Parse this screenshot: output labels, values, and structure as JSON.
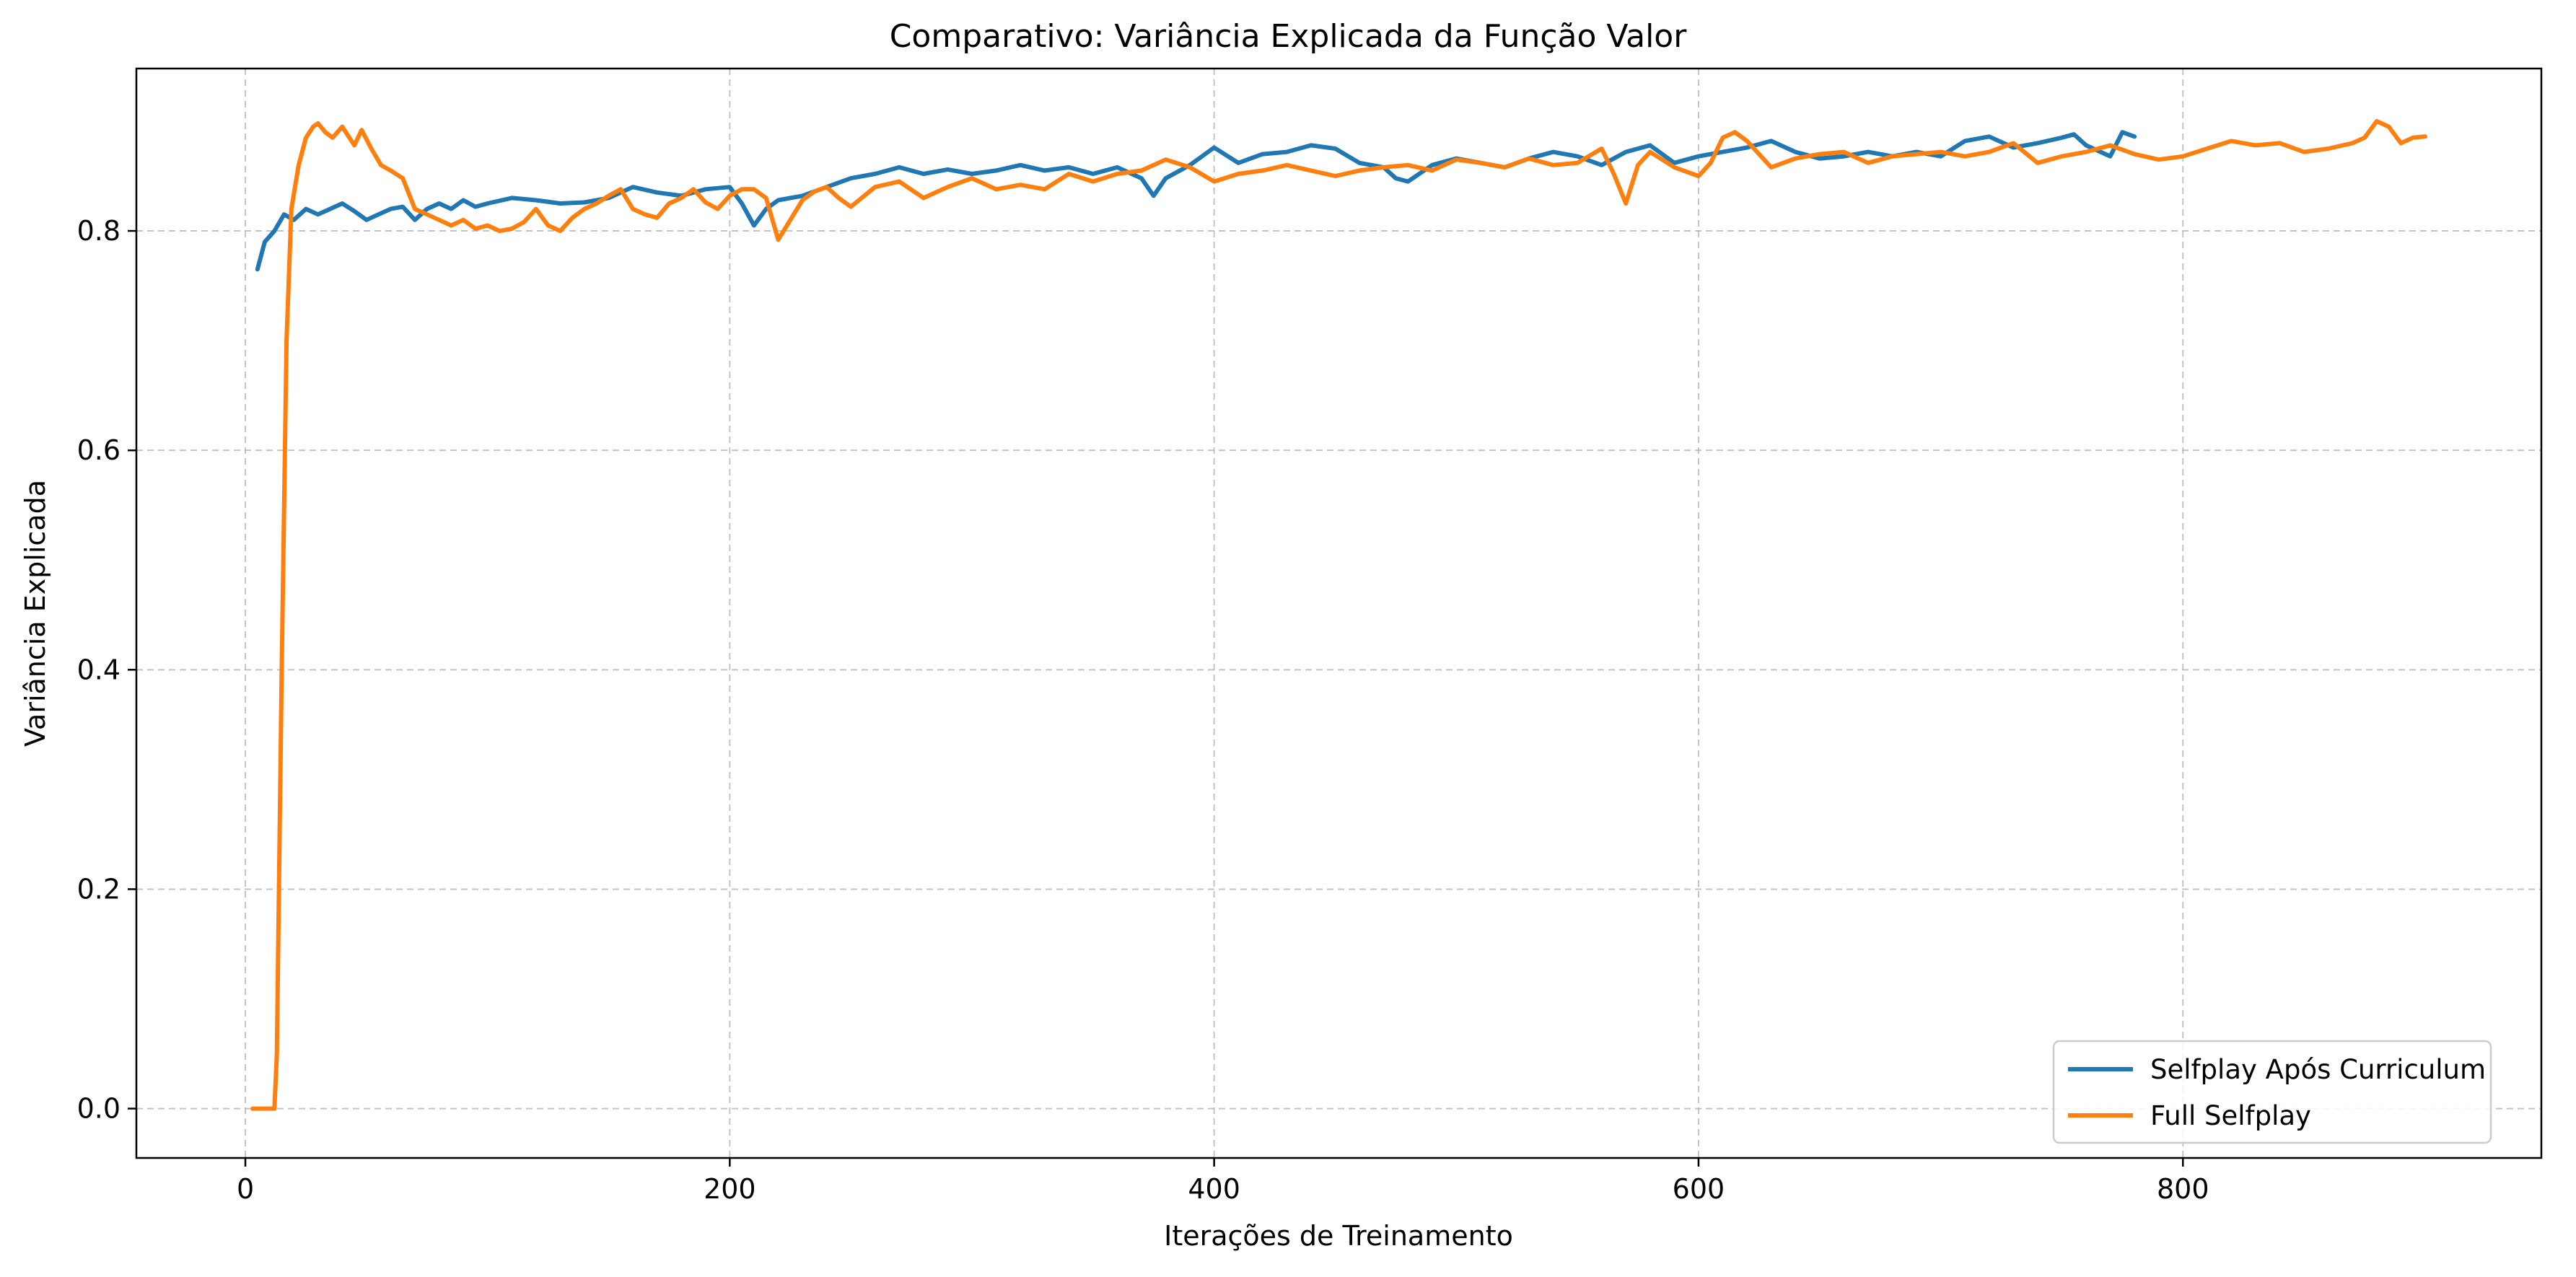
{
  "chart_data": {
    "type": "line",
    "title": "Comparativo: Variância Explicada da Função Valor",
    "xlabel": "Iterações de Treinamento",
    "ylabel": "Variância Explicada",
    "xlim": [
      -45,
      948
    ],
    "ylim": [
      -0.045,
      0.948
    ],
    "xticks": [
      0,
      200,
      400,
      600,
      800
    ],
    "yticks": [
      0.0,
      0.2,
      0.4,
      0.6,
      0.8
    ],
    "xtick_labels": [
      "0",
      "200",
      "400",
      "600",
      "800"
    ],
    "ytick_labels": [
      "0.0",
      "0.2",
      "0.4",
      "0.6",
      "0.8"
    ],
    "grid": true,
    "legend_position": "lower-right",
    "series": [
      {
        "name": "Selfplay Após Curriculum",
        "color": "#1f77b4",
        "x": [
          5,
          8,
          12,
          16,
          20,
          25,
          30,
          35,
          40,
          45,
          50,
          55,
          60,
          65,
          70,
          75,
          80,
          85,
          90,
          95,
          100,
          110,
          120,
          130,
          140,
          150,
          160,
          170,
          180,
          190,
          200,
          205,
          210,
          215,
          220,
          230,
          240,
          250,
          260,
          270,
          280,
          290,
          300,
          310,
          320,
          330,
          340,
          350,
          360,
          370,
          375,
          380,
          390,
          400,
          410,
          420,
          430,
          440,
          450,
          460,
          470,
          475,
          480,
          490,
          500,
          510,
          520,
          530,
          540,
          550,
          560,
          570,
          580,
          590,
          600,
          610,
          620,
          630,
          640,
          650,
          660,
          670,
          680,
          690,
          700,
          710,
          720,
          730,
          740,
          750,
          755,
          760,
          770,
          775,
          780
        ],
        "y": [
          0.765,
          0.79,
          0.8,
          0.815,
          0.81,
          0.82,
          0.815,
          0.82,
          0.825,
          0.818,
          0.81,
          0.815,
          0.82,
          0.822,
          0.81,
          0.82,
          0.825,
          0.82,
          0.828,
          0.822,
          0.825,
          0.83,
          0.828,
          0.825,
          0.826,
          0.83,
          0.84,
          0.835,
          0.832,
          0.838,
          0.84,
          0.825,
          0.805,
          0.82,
          0.828,
          0.832,
          0.84,
          0.848,
          0.852,
          0.858,
          0.852,
          0.856,
          0.852,
          0.855,
          0.86,
          0.855,
          0.858,
          0.852,
          0.858,
          0.848,
          0.832,
          0.848,
          0.86,
          0.876,
          0.862,
          0.87,
          0.872,
          0.878,
          0.875,
          0.862,
          0.858,
          0.848,
          0.845,
          0.86,
          0.866,
          0.862,
          0.858,
          0.866,
          0.872,
          0.868,
          0.86,
          0.872,
          0.878,
          0.862,
          0.868,
          0.872,
          0.876,
          0.882,
          0.872,
          0.866,
          0.868,
          0.872,
          0.868,
          0.872,
          0.868,
          0.882,
          0.886,
          0.876,
          0.88,
          0.885,
          0.888,
          0.878,
          0.868,
          0.89,
          0.886
        ]
      },
      {
        "name": "Full Selfplay",
        "color": "#ff7f0e",
        "x": [
          3,
          8,
          12,
          13,
          15,
          17,
          19,
          22,
          25,
          28,
          30,
          33,
          36,
          40,
          45,
          48,
          52,
          56,
          60,
          65,
          70,
          75,
          80,
          85,
          90,
          95,
          100,
          105,
          110,
          115,
          120,
          125,
          130,
          135,
          140,
          145,
          150,
          155,
          160,
          165,
          170,
          175,
          180,
          185,
          190,
          195,
          200,
          205,
          210,
          215,
          220,
          225,
          230,
          235,
          240,
          245,
          250,
          260,
          270,
          280,
          290,
          300,
          310,
          320,
          330,
          340,
          350,
          360,
          370,
          380,
          390,
          400,
          410,
          420,
          430,
          440,
          450,
          460,
          470,
          480,
          490,
          500,
          510,
          520,
          530,
          540,
          550,
          560,
          565,
          570,
          575,
          580,
          590,
          600,
          605,
          610,
          615,
          620,
          630,
          640,
          650,
          660,
          670,
          680,
          690,
          700,
          710,
          720,
          730,
          740,
          750,
          760,
          770,
          780,
          790,
          800,
          810,
          820,
          830,
          840,
          850,
          860,
          870,
          875,
          880,
          885,
          890,
          895,
          900
        ],
        "y": [
          0.0,
          0.0,
          0.0,
          0.05,
          0.4,
          0.7,
          0.82,
          0.86,
          0.885,
          0.895,
          0.898,
          0.89,
          0.885,
          0.895,
          0.878,
          0.892,
          0.875,
          0.86,
          0.855,
          0.848,
          0.82,
          0.815,
          0.81,
          0.805,
          0.81,
          0.802,
          0.805,
          0.8,
          0.802,
          0.808,
          0.82,
          0.805,
          0.8,
          0.812,
          0.82,
          0.825,
          0.832,
          0.838,
          0.82,
          0.815,
          0.812,
          0.825,
          0.83,
          0.838,
          0.826,
          0.82,
          0.832,
          0.838,
          0.838,
          0.83,
          0.792,
          0.81,
          0.828,
          0.836,
          0.84,
          0.83,
          0.822,
          0.84,
          0.845,
          0.83,
          0.84,
          0.848,
          0.838,
          0.842,
          0.838,
          0.852,
          0.845,
          0.852,
          0.855,
          0.865,
          0.858,
          0.845,
          0.852,
          0.855,
          0.86,
          0.855,
          0.85,
          0.855,
          0.858,
          0.86,
          0.855,
          0.865,
          0.862,
          0.858,
          0.866,
          0.86,
          0.862,
          0.875,
          0.852,
          0.825,
          0.86,
          0.872,
          0.858,
          0.85,
          0.862,
          0.885,
          0.89,
          0.882,
          0.858,
          0.866,
          0.87,
          0.872,
          0.862,
          0.868,
          0.87,
          0.872,
          0.868,
          0.872,
          0.88,
          0.862,
          0.868,
          0.872,
          0.878,
          0.87,
          0.865,
          0.868,
          0.875,
          0.882,
          0.878,
          0.88,
          0.872,
          0.875,
          0.88,
          0.885,
          0.9,
          0.895,
          0.88,
          0.885,
          0.886
        ]
      }
    ]
  }
}
